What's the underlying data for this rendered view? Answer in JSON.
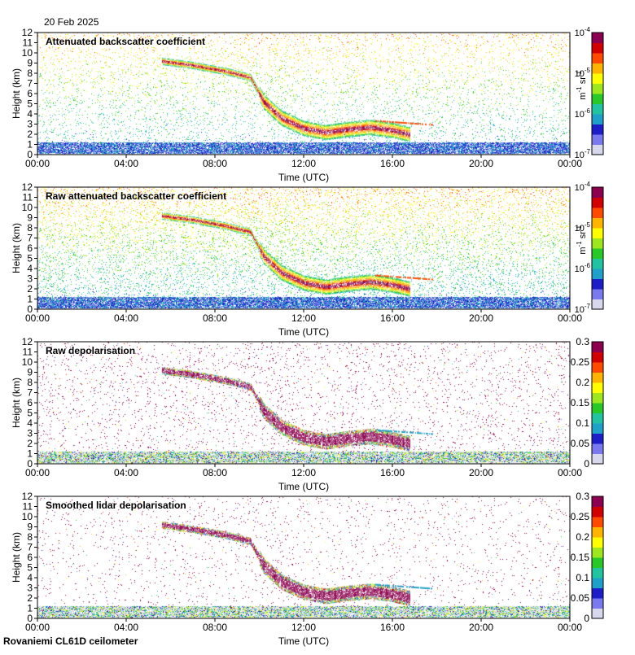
{
  "date": "20 Feb 2025",
  "footer": "Rovaniemi CL61D ceilometer",
  "colors": {
    "palette": [
      "#d8d8ec",
      "#7a7aee",
      "#1e1ec8",
      "#1fa0c8",
      "#22c4a0",
      "#28c828",
      "#9ee61e",
      "#ffff00",
      "#ffb400",
      "#ff4b00",
      "#d20000",
      "#8c0050"
    ],
    "background": "#ffffff"
  },
  "chart_data": [
    {
      "type": "heatmap",
      "title": "Attenuated backscatter coefficient",
      "xlabel": "Time (UTC)",
      "ylabel": "Height (km)",
      "x_ticks": [
        "00:00",
        "04:00",
        "08:00",
        "12:00",
        "16:00",
        "20:00",
        "00:00"
      ],
      "y_ticks": [
        "0",
        "1",
        "2",
        "3",
        "4",
        "5",
        "6",
        "7",
        "8",
        "9",
        "10",
        "11",
        "12"
      ],
      "xlim_hours": [
        0,
        24
      ],
      "ylim_km": [
        0,
        12
      ],
      "colorbar": {
        "scale": "log",
        "range": [
          1e-07,
          0.0001
        ],
        "tick_labels": [
          {
            "base": "10",
            "exp": "-4"
          },
          {
            "base": "10",
            "exp": "-5"
          },
          {
            "base": "10",
            "exp": "-6"
          },
          {
            "base": "10",
            "exp": "-7"
          }
        ],
        "unit": {
          "m": "m",
          "m_exp": "-1",
          "sr": "sr",
          "sr_exp": "-1"
        }
      },
      "noise_level": 0.18,
      "noise_top_km": 12
    },
    {
      "type": "heatmap",
      "title": "Raw attenuated backscatter coefficient",
      "xlabel": "Time (UTC)",
      "ylabel": "Height (km)",
      "x_ticks": [
        "00:00",
        "04:00",
        "08:00",
        "12:00",
        "16:00",
        "20:00",
        "00:00"
      ],
      "y_ticks": [
        "0",
        "1",
        "2",
        "3",
        "4",
        "5",
        "6",
        "7",
        "8",
        "9",
        "10",
        "11",
        "12"
      ],
      "xlim_hours": [
        0,
        24
      ],
      "ylim_km": [
        0,
        12
      ],
      "colorbar": {
        "scale": "log",
        "range": [
          1e-07,
          0.0001
        ],
        "tick_labels": [
          {
            "base": "10",
            "exp": "-4"
          },
          {
            "base": "10",
            "exp": "-5"
          },
          {
            "base": "10",
            "exp": "-6"
          },
          {
            "base": "10",
            "exp": "-7"
          }
        ],
        "unit": {
          "m": "m",
          "m_exp": "-1",
          "sr": "sr",
          "sr_exp": "-1"
        }
      },
      "noise_level": 1.0,
      "noise_top_km": 12
    },
    {
      "type": "heatmap",
      "title": "Raw depolarisation",
      "xlabel": "Time (UTC)",
      "ylabel": "Height (km)",
      "x_ticks": [
        "00:00",
        "04:00",
        "08:00",
        "12:00",
        "16:00",
        "20:00",
        "00:00"
      ],
      "y_ticks": [
        "0",
        "1",
        "2",
        "3",
        "4",
        "5",
        "6",
        "7",
        "8",
        "9",
        "10",
        "11",
        "12"
      ],
      "xlim_hours": [
        0,
        24
      ],
      "ylim_km": [
        0,
        12
      ],
      "colorbar": {
        "scale": "linear",
        "range": [
          0,
          0.3
        ],
        "tick_labels": [
          "0.3",
          "0.25",
          "0.2",
          "0.15",
          "0.1",
          "0.05",
          "0"
        ]
      },
      "noise_level": 1.0,
      "noise_top_km": 12
    },
    {
      "type": "heatmap",
      "title": "Smoothed lidar depolarisation",
      "xlabel": "Time (UTC)",
      "ylabel": "Height (km)",
      "x_ticks": [
        "00:00",
        "04:00",
        "08:00",
        "12:00",
        "16:00",
        "20:00",
        "00:00"
      ],
      "y_ticks": [
        "0",
        "1",
        "2",
        "3",
        "4",
        "5",
        "6",
        "7",
        "8",
        "9",
        "10",
        "11",
        "12"
      ],
      "xlim_hours": [
        0,
        24
      ],
      "ylim_km": [
        0,
        12
      ],
      "colorbar": {
        "scale": "linear",
        "range": [
          0,
          0.3
        ],
        "tick_labels": [
          "0.3",
          "0.25",
          "0.2",
          "0.15",
          "0.1",
          "0.05",
          "0"
        ]
      },
      "noise_level": 0.06,
      "noise_top_km": 12
    }
  ],
  "cloud_layer": {
    "points": [
      {
        "t": 5.6,
        "h": 9.2
      },
      {
        "t": 7.0,
        "h": 8.8
      },
      {
        "t": 8.5,
        "h": 8.2
      },
      {
        "t": 9.6,
        "h": 7.6
      },
      {
        "t": 10.2,
        "h": 5.2
      },
      {
        "t": 11.0,
        "h": 3.6
      },
      {
        "t": 12.0,
        "h": 2.6
      },
      {
        "t": 13.0,
        "h": 2.2
      },
      {
        "t": 14.0,
        "h": 2.5
      },
      {
        "t": 15.0,
        "h": 2.7
      },
      {
        "t": 16.0,
        "h": 2.4
      },
      {
        "t": 16.8,
        "h": 2.0
      }
    ],
    "secondary": [
      {
        "t": 15.2,
        "h": 3.4
      },
      {
        "t": 16.5,
        "h": 3.2
      },
      {
        "t": 17.8,
        "h": 3.0
      }
    ]
  }
}
